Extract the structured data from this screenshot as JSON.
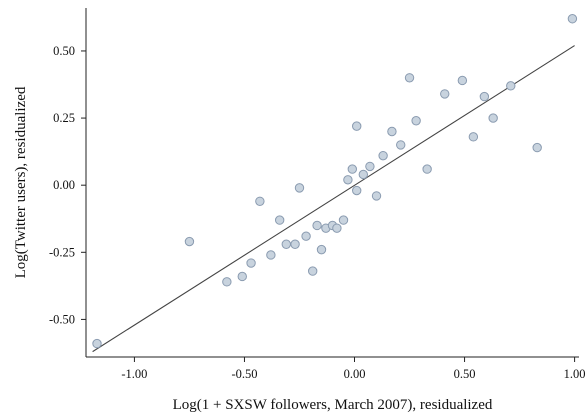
{
  "chart_data": {
    "type": "scatter",
    "xlabel": "Log(1 + SXSW followers, March 2007), residualized",
    "ylabel": "Log(Twitter users), residualized",
    "xlim": [
      -1.22,
      1.02
    ],
    "ylim": [
      -0.64,
      0.66
    ],
    "x_ticks": [
      -1.0,
      -0.5,
      0.0,
      0.5,
      1.0
    ],
    "x_tick_labels": [
      "-1.00",
      "-0.50",
      "0.00",
      "0.50",
      "1.00"
    ],
    "y_ticks": [
      -0.5,
      -0.25,
      0.0,
      0.25,
      0.5
    ],
    "y_tick_labels": [
      "-0.50",
      "-0.25",
      "0.00",
      "0.25",
      "0.50"
    ],
    "grid": false,
    "colors": {
      "point_fill": "#c8d3de",
      "point_stroke": "#8a9bb0",
      "line": "#444444",
      "axis": "#222222"
    },
    "points": [
      {
        "x": -1.17,
        "y": -0.59
      },
      {
        "x": -0.75,
        "y": -0.21
      },
      {
        "x": -0.58,
        "y": -0.36
      },
      {
        "x": -0.51,
        "y": -0.34
      },
      {
        "x": -0.47,
        "y": -0.29
      },
      {
        "x": -0.43,
        "y": -0.06
      },
      {
        "x": -0.38,
        "y": -0.26
      },
      {
        "x": -0.34,
        "y": -0.13
      },
      {
        "x": -0.31,
        "y": -0.22
      },
      {
        "x": -0.27,
        "y": -0.22
      },
      {
        "x": -0.25,
        "y": -0.01
      },
      {
        "x": -0.22,
        "y": -0.19
      },
      {
        "x": -0.19,
        "y": -0.32
      },
      {
        "x": -0.17,
        "y": -0.15
      },
      {
        "x": -0.15,
        "y": -0.24
      },
      {
        "x": -0.13,
        "y": -0.16
      },
      {
        "x": -0.1,
        "y": -0.15
      },
      {
        "x": -0.08,
        "y": -0.16
      },
      {
        "x": -0.05,
        "y": -0.13
      },
      {
        "x": -0.03,
        "y": 0.02
      },
      {
        "x": -0.01,
        "y": 0.06
      },
      {
        "x": 0.01,
        "y": 0.22
      },
      {
        "x": 0.01,
        "y": -0.02
      },
      {
        "x": 0.04,
        "y": 0.04
      },
      {
        "x": 0.07,
        "y": 0.07
      },
      {
        "x": 0.1,
        "y": -0.04
      },
      {
        "x": 0.13,
        "y": 0.11
      },
      {
        "x": 0.17,
        "y": 0.2
      },
      {
        "x": 0.21,
        "y": 0.15
      },
      {
        "x": 0.25,
        "y": 0.4
      },
      {
        "x": 0.28,
        "y": 0.24
      },
      {
        "x": 0.33,
        "y": 0.06
      },
      {
        "x": 0.41,
        "y": 0.34
      },
      {
        "x": 0.49,
        "y": 0.39
      },
      {
        "x": 0.54,
        "y": 0.18
      },
      {
        "x": 0.59,
        "y": 0.33
      },
      {
        "x": 0.63,
        "y": 0.25
      },
      {
        "x": 0.71,
        "y": 0.37
      },
      {
        "x": 0.83,
        "y": 0.14
      },
      {
        "x": 0.99,
        "y": 0.62
      }
    ],
    "fit_line": {
      "x": [
        -1.19,
        1.0
      ],
      "y": [
        -0.62,
        0.52
      ]
    }
  }
}
